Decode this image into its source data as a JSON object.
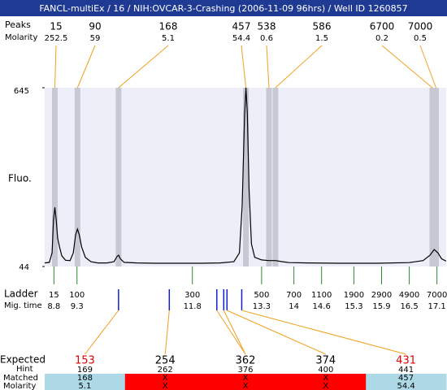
{
  "title": "FANCL-multiEx / 16 / NIH:OVCAR-3-Crashing (2006-11-09 96hrs) / Well ID 1260857",
  "peaks": {
    "size_label": "Peaks",
    "molarity_label": "Molarity",
    "items": [
      {
        "size": 15,
        "molarity": 252.5,
        "time": 8.82
      },
      {
        "size": 90,
        "molarity": 59,
        "time": 9.31
      },
      {
        "size": 168,
        "molarity": 5.1,
        "time": 10.2
      },
      {
        "size": 457,
        "molarity": 54.4,
        "time": 12.96
      },
      {
        "size": 538,
        "molarity": 0.6,
        "time": 13.46
      },
      {
        "size": 586,
        "molarity": 1.5,
        "time": 13.6
      },
      {
        "size": 6700,
        "molarity": 0.2,
        "time": 17.0
      },
      {
        "size": 7000,
        "molarity": 0.5,
        "time": 17.08
      }
    ]
  },
  "plot": {
    "y_label": "Fluo.",
    "ylim": [
      44,
      645
    ],
    "yticks": [
      44,
      645
    ],
    "xlim": [
      8.6,
      17.3
    ],
    "trace": {
      "x": [
        8.6,
        8.7,
        8.76,
        8.79,
        8.82,
        8.85,
        8.88,
        8.92,
        8.97,
        9.05,
        9.15,
        9.22,
        9.27,
        9.31,
        9.35,
        9.4,
        9.48,
        9.6,
        9.75,
        9.95,
        10.1,
        10.17,
        10.2,
        10.24,
        10.32,
        10.6,
        11.0,
        11.5,
        12.0,
        12.4,
        12.7,
        12.82,
        12.88,
        12.93,
        12.96,
        12.99,
        13.03,
        13.08,
        13.15,
        13.3,
        13.45,
        13.6,
        13.75,
        13.9,
        14.3,
        15.0,
        15.8,
        16.5,
        16.8,
        16.95,
        17.04,
        17.12,
        17.2,
        17.3
      ],
      "y": [
        56,
        58,
        90,
        200,
        243,
        200,
        140,
        110,
        80,
        65,
        64,
        90,
        150,
        170,
        150,
        110,
        75,
        60,
        56,
        56,
        60,
        78,
        82,
        70,
        58,
        56,
        55,
        55,
        55,
        56,
        60,
        90,
        250,
        550,
        645,
        560,
        300,
        120,
        75,
        66,
        64,
        64,
        60,
        57,
        56,
        55,
        55,
        57,
        64,
        82,
        101,
        90,
        70,
        62
      ]
    }
  },
  "ladder": {
    "label": "Ladder",
    "time_label": "Mig. time",
    "sizes": [
      15,
      100,
      300,
      500,
      700,
      1100,
      1900,
      2900,
      4900,
      7000
    ],
    "times": [
      8.8,
      9.3,
      11.8,
      13.3,
      14,
      14.6,
      15.3,
      15.9,
      16.5,
      17.1
    ]
  },
  "expected": {
    "labels": {
      "expected": "Expected",
      "hint": "Hint",
      "matched": "Matched",
      "molarity": "Molarity"
    },
    "items": [
      {
        "size": 153,
        "hint": 169,
        "matched": 168,
        "molarity": 5.1,
        "times": [
          10.2
        ],
        "flag": true
      },
      {
        "size": 254,
        "hint": 262,
        "matched": "X",
        "molarity": "X",
        "times": [
          11.3
        ],
        "flag": false
      },
      {
        "size": 362,
        "hint": 376,
        "matched": "X",
        "molarity": "X",
        "times": [
          12.33,
          12.48
        ],
        "flag": false
      },
      {
        "size": 374,
        "hint": 400,
        "matched": "X",
        "molarity": "X",
        "times": [
          12.55
        ],
        "flag": false
      },
      {
        "size": 431,
        "hint": 441,
        "matched": 457,
        "molarity": 54.4,
        "times": [
          12.87
        ],
        "flag": true
      }
    ]
  }
}
